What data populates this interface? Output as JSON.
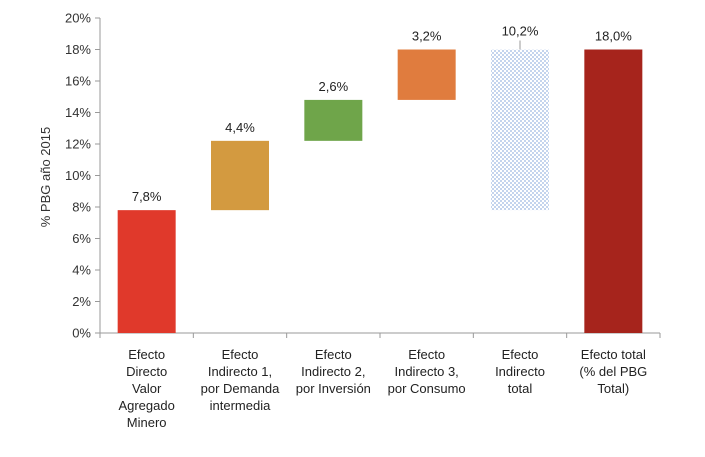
{
  "chart_data": {
    "type": "bar",
    "subtype": "waterfall",
    "ylabel": "% PBG año 2015",
    "ylim": [
      0,
      20
    ],
    "yticks": [
      0,
      2,
      4,
      6,
      8,
      10,
      12,
      14,
      16,
      18,
      20
    ],
    "ytick_labels": [
      "0%",
      "2%",
      "4%",
      "6%",
      "8%",
      "10%",
      "12%",
      "14%",
      "16%",
      "18%",
      "20%"
    ],
    "categories": [
      "Efecto Directo Valor Agregado Minero",
      "Efecto Indirecto 1, por Demanda intermedia",
      "Efecto Indirecto 2, por Inversión",
      "Efecto Indirecto 3, por Consumo",
      "Efecto Indirecto total",
      "Efecto total (% del PBG Total)"
    ],
    "category_lines": [
      [
        "Efecto",
        "Directo",
        "Valor",
        "Agregado",
        "Minero"
      ],
      [
        "Efecto",
        "Indirecto 1,",
        "por Demanda",
        "intermedia"
      ],
      [
        "Efecto",
        "Indirecto 2,",
        "por Inversión"
      ],
      [
        "Efecto",
        "Indirecto 3,",
        "por Consumo"
      ],
      [
        "Efecto",
        "Indirecto",
        "total"
      ],
      [
        "Efecto total",
        "(% del PBG",
        "Total)"
      ]
    ],
    "bars": [
      {
        "base": 0.0,
        "value": 7.8,
        "label": "7,8%",
        "color": "#e0392b",
        "pattern": false
      },
      {
        "base": 7.8,
        "value": 4.4,
        "label": "4,4%",
        "color": "#d39a40",
        "pattern": false
      },
      {
        "base": 12.2,
        "value": 2.6,
        "label": "2,6%",
        "color": "#6fa54a",
        "pattern": false
      },
      {
        "base": 14.8,
        "value": 3.2,
        "label": "3,2%",
        "color": "#e07c3e",
        "pattern": false
      },
      {
        "base": 7.8,
        "value": 10.2,
        "label": "10,2%",
        "color": "#9ab6e0",
        "pattern": true
      },
      {
        "base": 0.0,
        "value": 18.0,
        "label": "18,0%",
        "color": "#a6241c",
        "pattern": false
      }
    ]
  }
}
